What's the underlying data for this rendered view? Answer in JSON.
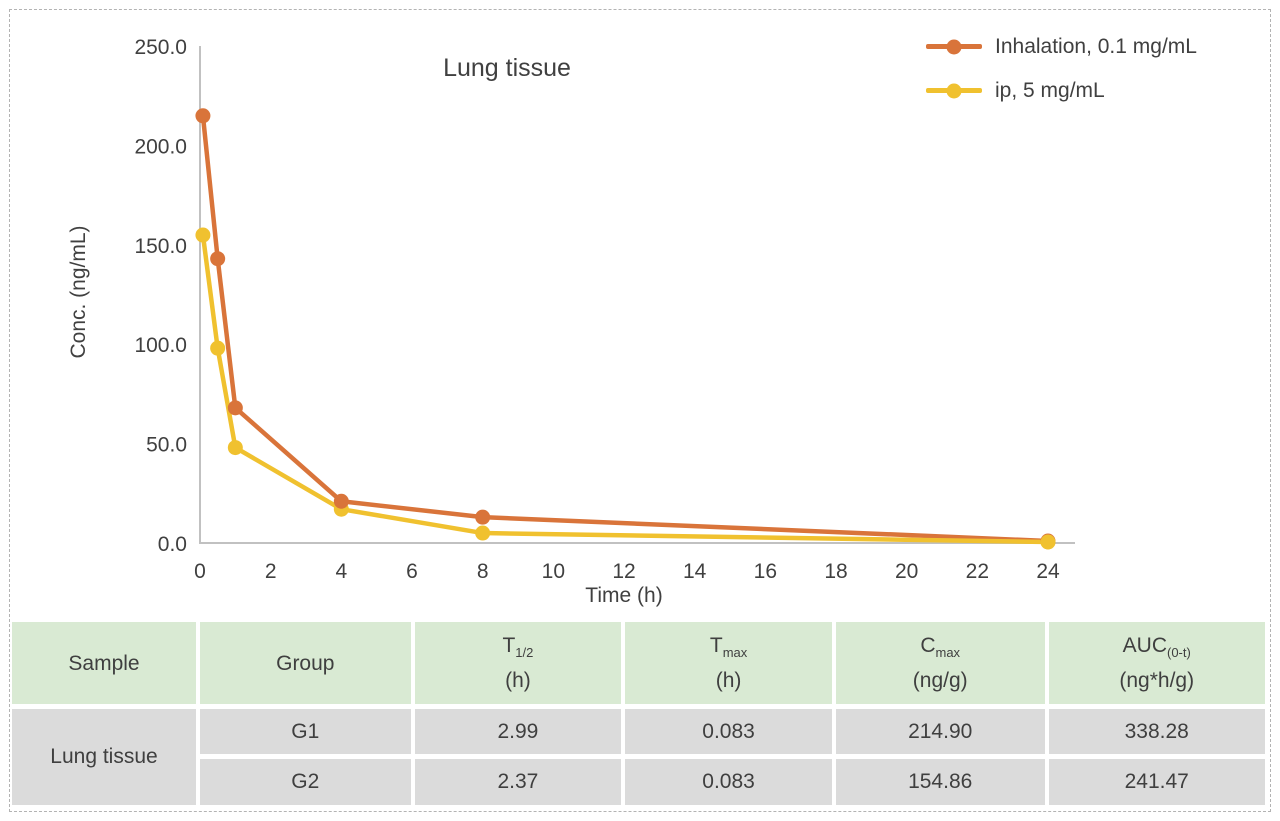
{
  "chart_data": {
    "type": "line",
    "title": "Lung tissue",
    "xlabel": "Time (h)",
    "ylabel": "Conc. (ng/mL)",
    "xlim": [
      0,
      24
    ],
    "ylim": [
      0,
      250
    ],
    "x_ticks": [
      0,
      2,
      4,
      6,
      8,
      10,
      12,
      14,
      16,
      18,
      20,
      22,
      24
    ],
    "y_ticks": [
      0,
      50,
      100,
      150,
      200,
      250
    ],
    "y_tick_labels": [
      "0.0",
      "50.0",
      "100.0",
      "150.0",
      "200.0",
      "250.0"
    ],
    "grid": false,
    "legend_position": "top-right",
    "x": [
      0.083,
      0.5,
      1,
      4,
      8,
      24
    ],
    "series": [
      {
        "name": "Inhalation, 0.1 mg/mL",
        "color": "#D9743A",
        "values": [
          214.9,
          143,
          68,
          21,
          13,
          1
        ]
      },
      {
        "name": "ip, 5 mg/mL",
        "color": "#F0C12F",
        "values": [
          154.9,
          98,
          48,
          17,
          5,
          0.5
        ]
      }
    ],
    "axis_color": "#c1c1c1",
    "text_color": "#404040"
  },
  "table": {
    "sample_label": "Lung tissue",
    "columns": [
      {
        "main": "Sample",
        "sub": "",
        "unit": ""
      },
      {
        "main": "Group",
        "sub": "",
        "unit": ""
      },
      {
        "main": "T",
        "sub": "1/2",
        "unit": "(h)"
      },
      {
        "main": "T",
        "sub": "max",
        "unit": "(h)"
      },
      {
        "main": "C",
        "sub": "max",
        "unit": "(ng/g)"
      },
      {
        "main": "AUC",
        "sub": "(0-t)",
        "unit": "(ng*h/g)"
      }
    ],
    "rows": [
      {
        "group": "G1",
        "t_half": "2.99",
        "t_max": "0.083",
        "c_max": "214.90",
        "auc": "338.28"
      },
      {
        "group": "G2",
        "t_half": "2.37",
        "t_max": "0.083",
        "c_max": "154.86",
        "auc": "241.47"
      }
    ],
    "colors": {
      "header_bg": "#D9EAD3",
      "row_bg": "#DBDBDB",
      "text": "#3F3F3F"
    }
  }
}
